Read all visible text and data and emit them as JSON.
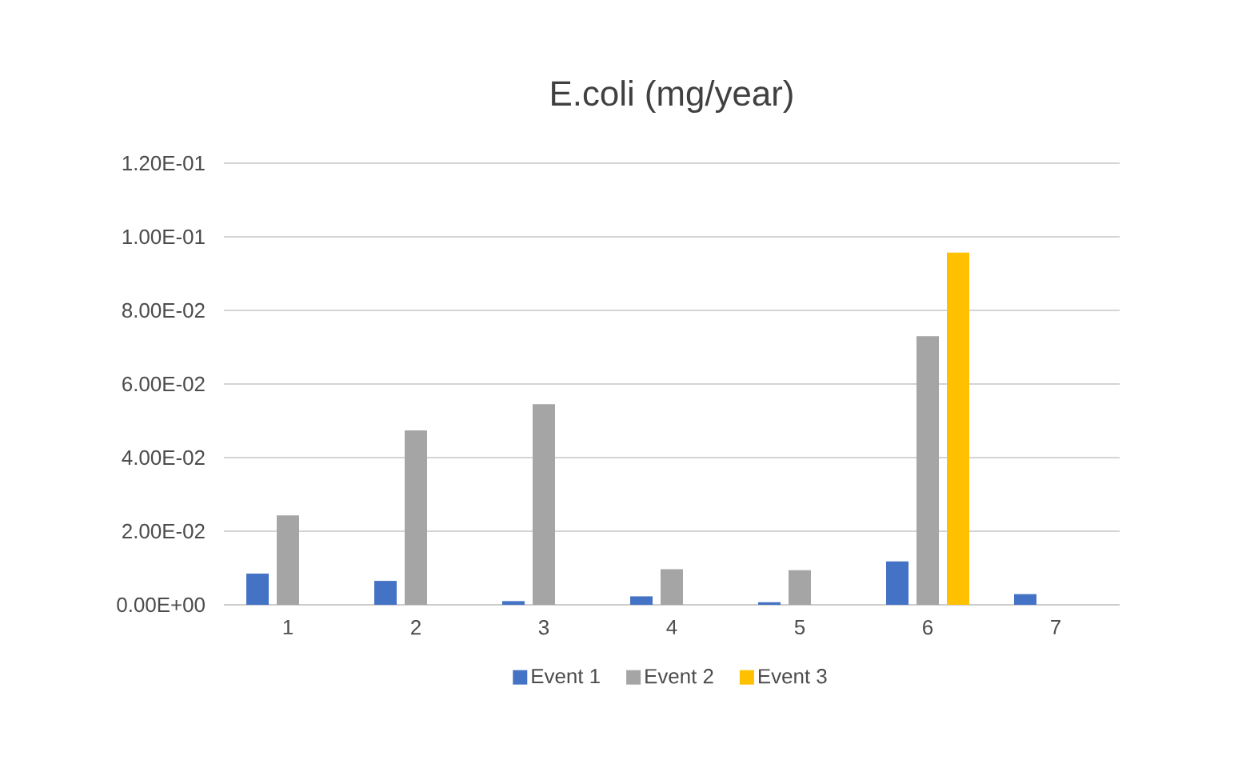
{
  "chart_data": {
    "type": "bar",
    "title": "E.coli (mg/year)",
    "categories": [
      "1",
      "2",
      "3",
      "4",
      "5",
      "6",
      "7"
    ],
    "series": [
      {
        "name": "Event 1",
        "color": "#4472c4",
        "values": [
          0.0085,
          0.0065,
          0.001,
          0.0023,
          0.0007,
          0.0118,
          0.0029
        ]
      },
      {
        "name": "Event 2",
        "color": "#a5a5a5",
        "values": [
          0.0243,
          0.0474,
          0.0545,
          0.0097,
          0.0094,
          0.073,
          null
        ]
      },
      {
        "name": "Event 3",
        "color": "#ffc000",
        "values": [
          null,
          null,
          null,
          null,
          null,
          0.0957,
          null
        ]
      }
    ],
    "ylim": [
      0,
      0.12
    ],
    "yticks": [
      {
        "value": 0,
        "label": "0.00E+00"
      },
      {
        "value": 0.02,
        "label": "2.00E-02"
      },
      {
        "value": 0.04,
        "label": "4.00E-02"
      },
      {
        "value": 0.06,
        "label": "6.00E-02"
      },
      {
        "value": 0.08,
        "label": "8.00E-02"
      },
      {
        "value": 0.1,
        "label": "1.00E-01"
      },
      {
        "value": 0.12,
        "label": "1.20E-01"
      }
    ],
    "grid": "y",
    "legend": "bottom"
  }
}
